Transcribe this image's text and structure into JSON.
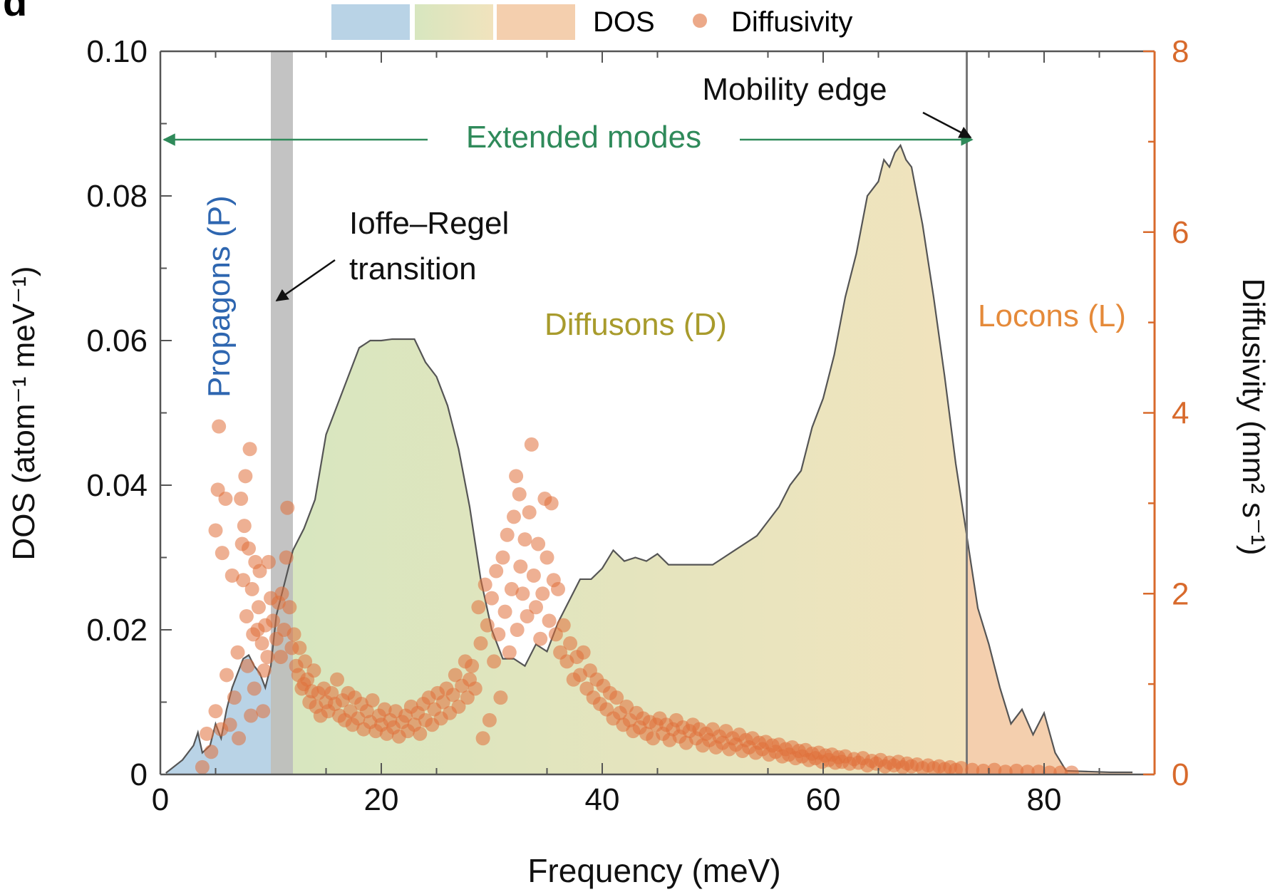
{
  "panel_label": "d",
  "legend": {
    "dos_label": "DOS",
    "diffusivity_label": "Diffusivity"
  },
  "colors": {
    "propagon": "#b9d3e6",
    "diffuson_start": "#d7e6bf",
    "diffuson_end": "#f1e3bd",
    "locon": "#f4cfae",
    "ioffe_band": "#bdbdbd",
    "points": "#e0703a",
    "right_axis": "#d86a2c",
    "extended": "#2f8a5a",
    "propagon_text": "#2e66b0",
    "diffuson_text": "#a89b2c",
    "locon_text": "#e58a3a"
  },
  "annotations": {
    "extended_modes": "Extended modes",
    "mobility_edge": "Mobility edge",
    "ioffe_line1": "Ioffe–Regel",
    "ioffe_line2": "transition",
    "propagons": "Propagons (P)",
    "diffusons": "Diffusons (D)",
    "locons": "Locons (L)"
  },
  "chart_data": {
    "type": "area",
    "xlabel": "Frequency (meV)",
    "ylabel": "DOS (atom⁻¹ meV⁻¹)",
    "y2label": "Diffusivity (mm² s⁻¹)",
    "xlim": [
      0,
      90
    ],
    "ylim": [
      0,
      0.1
    ],
    "y2lim": [
      0,
      8
    ],
    "x_ticks": [
      0,
      20,
      40,
      60,
      80
    ],
    "y_ticks": [
      0,
      0.02,
      0.04,
      0.06,
      0.08,
      0.1
    ],
    "y_tick_labels": [
      "0",
      "0.02",
      "0.04",
      "0.06",
      "0.08",
      "0.10"
    ],
    "y2_ticks": [
      0,
      2,
      4,
      6,
      8
    ],
    "regions": {
      "propagon_end": 10,
      "ioffe_band": [
        10,
        12
      ],
      "mobility_edge": 73
    },
    "dos": {
      "x": [
        0.5,
        2,
        3,
        3.4,
        3.8,
        4.5,
        5,
        5.5,
        6,
        6.5,
        7,
        7.5,
        8,
        8.5,
        9,
        9.5,
        10,
        10.5,
        11,
        11.5,
        12,
        13,
        14,
        15,
        16,
        17,
        18,
        19,
        20,
        21,
        22,
        23,
        24,
        25,
        26,
        27,
        28,
        29,
        30,
        31,
        32,
        33,
        34,
        35,
        36,
        37,
        38,
        39,
        40,
        41,
        42,
        43,
        44,
        45,
        46,
        47,
        48,
        49,
        50,
        51,
        52,
        53,
        54,
        55,
        56,
        57,
        58,
        59,
        60,
        61,
        62,
        63,
        64,
        65,
        65.5,
        66,
        66.5,
        67,
        67.5,
        68,
        69,
        70,
        71,
        72,
        73,
        74,
        75,
        76,
        77,
        78,
        79,
        80,
        81,
        82,
        84,
        86,
        88
      ],
      "y": [
        0.0002,
        0.002,
        0.004,
        0.0058,
        0.003,
        0.004,
        0.007,
        0.005,
        0.009,
        0.012,
        0.014,
        0.016,
        0.0165,
        0.015,
        0.014,
        0.012,
        0.015,
        0.022,
        0.025,
        0.028,
        0.031,
        0.034,
        0.038,
        0.047,
        0.051,
        0.055,
        0.059,
        0.06,
        0.06,
        0.0602,
        0.0602,
        0.0602,
        0.057,
        0.055,
        0.051,
        0.045,
        0.037,
        0.027,
        0.02,
        0.016,
        0.016,
        0.015,
        0.018,
        0.017,
        0.021,
        0.024,
        0.027,
        0.027,
        0.0285,
        0.031,
        0.0295,
        0.03,
        0.0295,
        0.0305,
        0.029,
        0.029,
        0.029,
        0.029,
        0.029,
        0.03,
        0.031,
        0.032,
        0.033,
        0.035,
        0.037,
        0.04,
        0.042,
        0.048,
        0.052,
        0.058,
        0.066,
        0.072,
        0.08,
        0.082,
        0.085,
        0.084,
        0.086,
        0.087,
        0.085,
        0.084,
        0.076,
        0.066,
        0.055,
        0.043,
        0.033,
        0.023,
        0.018,
        0.012,
        0.007,
        0.009,
        0.0055,
        0.0085,
        0.003,
        0.0005,
        0.0004,
        0.0003,
        0.0003
      ],
      "description_note": ""
    },
    "diffusivity_points": [
      [
        3.8,
        0.08
      ],
      [
        4.2,
        0.45
      ],
      [
        4.6,
        0.25
      ],
      [
        5.0,
        0.7
      ],
      [
        5.0,
        2.7
      ],
      [
        5.2,
        3.15
      ],
      [
        5.3,
        3.85
      ],
      [
        5.5,
        0.5
      ],
      [
        5.6,
        2.45
      ],
      [
        5.9,
        3.05
      ],
      [
        6.0,
        1.1
      ],
      [
        6.3,
        0.55
      ],
      [
        6.5,
        2.2
      ],
      [
        6.7,
        0.85
      ],
      [
        7.0,
        1.35
      ],
      [
        7.1,
        0.4
      ],
      [
        7.3,
        3.05
      ],
      [
        7.4,
        2.55
      ],
      [
        7.5,
        2.15
      ],
      [
        7.6,
        2.75
      ],
      [
        7.7,
        3.3
      ],
      [
        7.8,
        1.75
      ],
      [
        7.9,
        1.2
      ],
      [
        8.0,
        2.5
      ],
      [
        8.1,
        3.6
      ],
      [
        8.2,
        0.65
      ],
      [
        8.3,
        2.05
      ],
      [
        8.4,
        1.55
      ],
      [
        8.5,
        0.95
      ],
      [
        8.6,
        2.35
      ],
      [
        8.8,
        1.6
      ],
      [
        8.9,
        1.85
      ],
      [
        9.0,
        2.25
      ],
      [
        9.2,
        1.45
      ],
      [
        9.3,
        0.7
      ],
      [
        9.4,
        1.15
      ],
      [
        9.5,
        1.65
      ],
      [
        9.7,
        1.3
      ],
      [
        9.8,
        2.35
      ],
      [
        10.0,
        1.95
      ],
      [
        10.2,
        1.7
      ],
      [
        10.5,
        1.5
      ],
      [
        10.7,
        1.9
      ],
      [
        10.9,
        1.3
      ],
      [
        11.0,
        2.0
      ],
      [
        11.2,
        1.6
      ],
      [
        11.4,
        2.4
      ],
      [
        11.5,
        2.95
      ],
      [
        11.7,
        1.85
      ],
      [
        11.9,
        1.4
      ],
      [
        12.1,
        1.55
      ],
      [
        12.3,
        1.2
      ],
      [
        12.5,
        1.1
      ],
      [
        12.6,
        1.4
      ],
      [
        12.8,
        0.95
      ],
      [
        13.0,
        1.0
      ],
      [
        13.1,
        1.25
      ],
      [
        13.3,
        1.05
      ],
      [
        13.5,
        0.8
      ],
      [
        13.7,
        0.92
      ],
      [
        13.9,
        1.15
      ],
      [
        14.1,
        0.75
      ],
      [
        14.3,
        0.9
      ],
      [
        14.5,
        0.65
      ],
      [
        14.8,
        0.95
      ],
      [
        15.0,
        0.8
      ],
      [
        15.2,
        0.7
      ],
      [
        15.5,
        0.9
      ],
      [
        15.8,
        0.78
      ],
      [
        16.0,
        1.05
      ],
      [
        16.2,
        0.65
      ],
      [
        16.5,
        0.82
      ],
      [
        16.7,
        0.6
      ],
      [
        17.0,
        0.9
      ],
      [
        17.2,
        0.7
      ],
      [
        17.4,
        0.55
      ],
      [
        17.6,
        0.85
      ],
      [
        17.9,
        0.62
      ],
      [
        18.2,
        0.78
      ],
      [
        18.4,
        0.5
      ],
      [
        18.7,
        0.7
      ],
      [
        19.0,
        0.58
      ],
      [
        19.2,
        0.82
      ],
      [
        19.5,
        0.48
      ],
      [
        19.8,
        0.65
      ],
      [
        20.0,
        0.55
      ],
      [
        20.3,
        0.72
      ],
      [
        20.5,
        0.45
      ],
      [
        20.8,
        0.6
      ],
      [
        21.1,
        0.52
      ],
      [
        21.3,
        0.7
      ],
      [
        21.6,
        0.42
      ],
      [
        21.9,
        0.58
      ],
      [
        22.2,
        0.65
      ],
      [
        22.4,
        0.48
      ],
      [
        22.7,
        0.75
      ],
      [
        23.0,
        0.55
      ],
      [
        23.3,
        0.68
      ],
      [
        23.5,
        0.45
      ],
      [
        23.8,
        0.78
      ],
      [
        24.0,
        0.6
      ],
      [
        24.3,
        0.85
      ],
      [
        24.6,
        0.55
      ],
      [
        24.8,
        0.72
      ],
      [
        25.1,
        0.9
      ],
      [
        25.4,
        0.62
      ],
      [
        25.6,
        0.8
      ],
      [
        25.9,
        0.95
      ],
      [
        26.2,
        0.68
      ],
      [
        26.5,
        0.88
      ],
      [
        26.7,
        1.1
      ],
      [
        27.0,
        0.75
      ],
      [
        27.3,
        0.98
      ],
      [
        27.6,
        1.25
      ],
      [
        27.8,
        0.85
      ],
      [
        28.0,
        1.05
      ],
      [
        28.2,
        1.2
      ],
      [
        28.5,
        0.95
      ],
      [
        28.8,
        1.85
      ],
      [
        29.0,
        1.45
      ],
      [
        29.2,
        0.4
      ],
      [
        29.4,
        2.1
      ],
      [
        29.6,
        1.65
      ],
      [
        29.8,
        0.6
      ],
      [
        30.0,
        1.95
      ],
      [
        30.2,
        1.25
      ],
      [
        30.4,
        2.25
      ],
      [
        30.6,
        1.55
      ],
      [
        30.8,
        0.85
      ],
      [
        31.0,
        2.4
      ],
      [
        31.2,
        1.8
      ],
      [
        31.4,
        2.65
      ],
      [
        31.6,
        1.35
      ],
      [
        31.8,
        2.05
      ],
      [
        32.0,
        2.85
      ],
      [
        32.2,
        3.3
      ],
      [
        32.3,
        1.6
      ],
      [
        32.5,
        3.1
      ],
      [
        32.6,
        2.3
      ],
      [
        32.8,
        2.0
      ],
      [
        33.0,
        2.6
      ],
      [
        33.2,
        1.75
      ],
      [
        33.4,
        2.9
      ],
      [
        33.6,
        3.65
      ],
      [
        33.8,
        2.2
      ],
      [
        34.0,
        1.85
      ],
      [
        34.2,
        2.55
      ],
      [
        34.4,
        1.5
      ],
      [
        34.6,
        2.0
      ],
      [
        34.8,
        3.05
      ],
      [
        35.0,
        2.4
      ],
      [
        35.2,
        1.7
      ],
      [
        35.4,
        3.0
      ],
      [
        35.6,
        2.15
      ],
      [
        35.8,
        1.55
      ],
      [
        36.0,
        2.05
      ],
      [
        36.2,
        1.35
      ],
      [
        36.5,
        1.65
      ],
      [
        36.8,
        1.25
      ],
      [
        37.1,
        1.45
      ],
      [
        37.4,
        1.05
      ],
      [
        37.7,
        1.3
      ],
      [
        38.0,
        1.1
      ],
      [
        38.3,
        1.35
      ],
      [
        38.6,
        0.95
      ],
      [
        38.9,
        1.15
      ],
      [
        39.2,
        0.85
      ],
      [
        39.5,
        1.05
      ],
      [
        39.8,
        0.78
      ],
      [
        40.1,
        0.98
      ],
      [
        40.4,
        0.72
      ],
      [
        40.7,
        0.9
      ],
      [
        41.0,
        0.62
      ],
      [
        41.3,
        0.85
      ],
      [
        41.6,
        0.68
      ],
      [
        41.9,
        0.55
      ],
      [
        42.2,
        0.75
      ],
      [
        42.5,
        0.6
      ],
      [
        42.8,
        0.48
      ],
      [
        43.1,
        0.68
      ],
      [
        43.4,
        0.52
      ],
      [
        43.7,
        0.62
      ],
      [
        44.0,
        0.45
      ],
      [
        44.3,
        0.58
      ],
      [
        44.6,
        0.4
      ],
      [
        44.9,
        0.55
      ],
      [
        45.2,
        0.62
      ],
      [
        45.5,
        0.45
      ],
      [
        45.8,
        0.55
      ],
      [
        46.1,
        0.38
      ],
      [
        46.4,
        0.5
      ],
      [
        46.7,
        0.6
      ],
      [
        47.0,
        0.42
      ],
      [
        47.3,
        0.52
      ],
      [
        47.6,
        0.35
      ],
      [
        47.9,
        0.48
      ],
      [
        48.2,
        0.55
      ],
      [
        48.5,
        0.4
      ],
      [
        48.8,
        0.5
      ],
      [
        49.1,
        0.32
      ],
      [
        49.4,
        0.45
      ],
      [
        49.7,
        0.38
      ],
      [
        50.0,
        0.5
      ],
      [
        50.3,
        0.3
      ],
      [
        50.6,
        0.42
      ],
      [
        50.9,
        0.35
      ],
      [
        51.2,
        0.48
      ],
      [
        51.5,
        0.28
      ],
      [
        51.8,
        0.4
      ],
      [
        52.1,
        0.33
      ],
      [
        52.4,
        0.44
      ],
      [
        52.7,
        0.26
      ],
      [
        53.0,
        0.38
      ],
      [
        53.3,
        0.3
      ],
      [
        53.6,
        0.4
      ],
      [
        53.9,
        0.24
      ],
      [
        54.2,
        0.35
      ],
      [
        54.5,
        0.28
      ],
      [
        54.8,
        0.36
      ],
      [
        55.1,
        0.22
      ],
      [
        55.4,
        0.32
      ],
      [
        55.7,
        0.25
      ],
      [
        56.0,
        0.33
      ],
      [
        56.3,
        0.2
      ],
      [
        56.6,
        0.28
      ],
      [
        56.9,
        0.22
      ],
      [
        57.2,
        0.3
      ],
      [
        57.5,
        0.18
      ],
      [
        57.8,
        0.26
      ],
      [
        58.1,
        0.2
      ],
      [
        58.4,
        0.27
      ],
      [
        58.7,
        0.16
      ],
      [
        59.0,
        0.23
      ],
      [
        59.3,
        0.18
      ],
      [
        59.6,
        0.24
      ],
      [
        59.9,
        0.14
      ],
      [
        60.2,
        0.21
      ],
      [
        60.5,
        0.16
      ],
      [
        60.8,
        0.22
      ],
      [
        61.1,
        0.13
      ],
      [
        61.4,
        0.19
      ],
      [
        61.7,
        0.14
      ],
      [
        62.0,
        0.2
      ],
      [
        62.4,
        0.12
      ],
      [
        62.8,
        0.17
      ],
      [
        63.2,
        0.13
      ],
      [
        63.6,
        0.18
      ],
      [
        64.0,
        0.1
      ],
      [
        64.4,
        0.15
      ],
      [
        64.8,
        0.12
      ],
      [
        65.2,
        0.16
      ],
      [
        65.6,
        0.09
      ],
      [
        66.0,
        0.13
      ],
      [
        66.4,
        0.1
      ],
      [
        66.8,
        0.14
      ],
      [
        67.2,
        0.08
      ],
      [
        67.6,
        0.12
      ],
      [
        68.0,
        0.09
      ],
      [
        68.5,
        0.11
      ],
      [
        69.0,
        0.07
      ],
      [
        69.5,
        0.1
      ],
      [
        70.0,
        0.07
      ],
      [
        70.5,
        0.09
      ],
      [
        71.0,
        0.06
      ],
      [
        71.5,
        0.08
      ],
      [
        72.0,
        0.05
      ],
      [
        72.5,
        0.07
      ],
      [
        73.5,
        0.05
      ],
      [
        74.5,
        0.04
      ],
      [
        75.5,
        0.05
      ],
      [
        76.5,
        0.03
      ],
      [
        77.5,
        0.04
      ],
      [
        78.5,
        0.03
      ],
      [
        79.5,
        0.03
      ],
      [
        80.5,
        0.02
      ],
      [
        81.5,
        0.02
      ],
      [
        82.5,
        0.02
      ]
    ]
  }
}
